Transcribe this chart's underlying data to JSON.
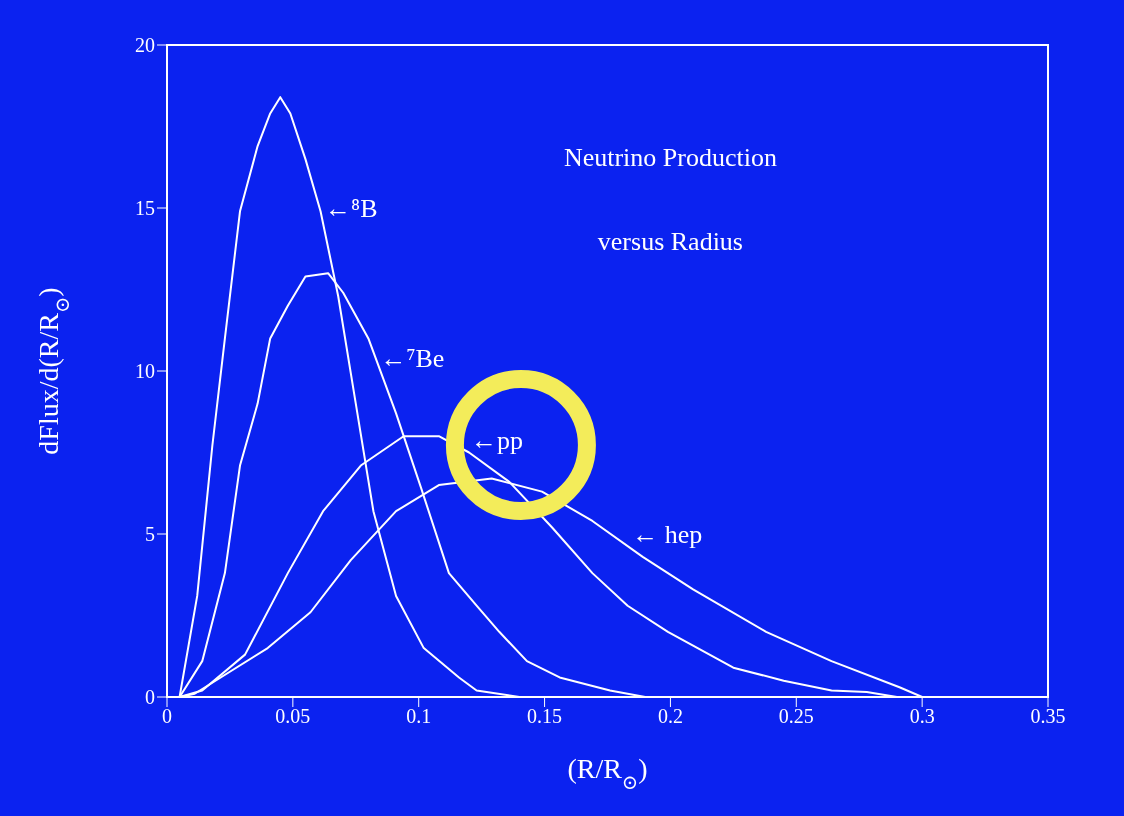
{
  "chart_data": {
    "type": "line",
    "title": "Neutrino Production",
    "subtitle": "versus Radius",
    "xlabel": "(R/R$_{⊙}$)",
    "ylabel": "dFlux/d(R/R$_{⊙}$)",
    "xlim": [
      0,
      0.35
    ],
    "xticks": [
      0,
      0.05,
      0.1,
      0.15,
      0.2,
      0.25,
      0.3,
      0.35
    ],
    "ylim": [
      0,
      20
    ],
    "yticks": [
      0,
      5,
      10,
      15,
      20
    ],
    "grid": false,
    "legend": false,
    "marker": "none",
    "line_style": "solid",
    "series": [
      {
        "color": "#ffffff",
        "x": [
          0.005,
          0.012,
          0.018,
          0.023,
          0.029,
          0.036,
          0.041,
          0.045,
          0.049,
          0.055,
          0.061,
          0.068,
          0.075,
          0.082,
          0.091,
          0.102,
          0.116,
          0.123,
          0.14
        ],
        "values": [
          0,
          3.1,
          7.7,
          11.0,
          14.9,
          16.9,
          17.9,
          18.4,
          17.9,
          16.5,
          14.9,
          12.3,
          9.0,
          5.7,
          3.1,
          1.5,
          0.6,
          0.2,
          0
        ]
      },
      {
        "color": "#ffffff",
        "x": [
          0.005,
          0.014,
          0.023,
          0.029,
          0.036,
          0.041,
          0.048,
          0.055,
          0.064,
          0.07,
          0.08,
          0.091,
          0.101,
          0.112,
          0.123,
          0.132,
          0.143,
          0.156,
          0.176,
          0.19
        ],
        "values": [
          0,
          1.1,
          3.8,
          7.1,
          9.0,
          11.0,
          12.0,
          12.9,
          13.0,
          12.4,
          11.0,
          8.7,
          6.4,
          3.8,
          2.8,
          2.0,
          1.1,
          0.6,
          0.2,
          0
        ]
      },
      {
        "color": "#ffffff",
        "x": [
          0.005,
          0.014,
          0.031,
          0.048,
          0.062,
          0.077,
          0.094,
          0.108,
          0.12,
          0.136,
          0.153,
          0.169,
          0.183,
          0.199,
          0.225,
          0.245,
          0.264,
          0.278,
          0.29
        ],
        "values": [
          0,
          0.2,
          1.3,
          3.8,
          5.7,
          7.1,
          8.0,
          8.0,
          7.5,
          6.6,
          5.2,
          3.8,
          2.8,
          2.0,
          0.9,
          0.5,
          0.2,
          0.15,
          0
        ]
      },
      {
        "color": "#ffffff",
        "x": [
          0.005,
          0.011,
          0.04,
          0.057,
          0.073,
          0.091,
          0.108,
          0.129,
          0.149,
          0.169,
          0.189,
          0.209,
          0.238,
          0.264,
          0.291,
          0.3
        ],
        "values": [
          0,
          0.1,
          1.5,
          2.6,
          4.2,
          5.7,
          6.5,
          6.7,
          6.3,
          5.4,
          4.3,
          3.3,
          2.0,
          1.1,
          0.3,
          0
        ]
      }
    ],
    "annotations": [
      {
        "text": "←⁸B",
        "x": 0.062,
        "y": 14.6
      },
      {
        "text": "←⁷Be",
        "x": 0.084,
        "y": 10.0
      },
      {
        "text": "←pp",
        "x": 0.12,
        "y": 7.5
      },
      {
        "text": "← hep",
        "x": 0.184,
        "y": 4.6
      }
    ]
  }
}
